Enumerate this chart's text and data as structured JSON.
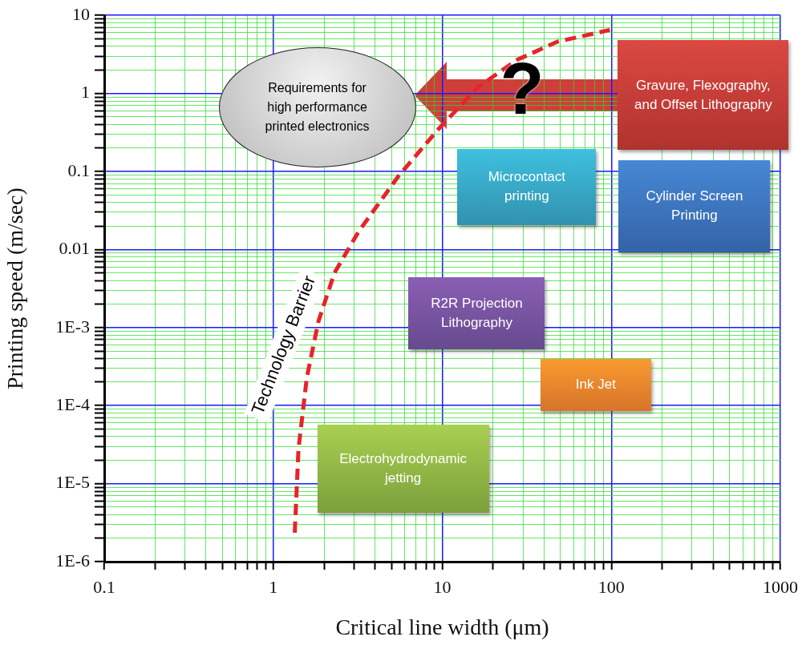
{
  "chart_data": {
    "type": "line",
    "xlabel": "Critical line width (μm)",
    "ylabel": "Printing speed (m/sec)",
    "x": [
      1.34,
      1.41,
      1.58,
      1.85,
      2.3,
      3.2,
      5.5,
      9.5,
      16.2,
      27.8,
      48,
      98
    ],
    "series": [
      {
        "name": "Technology Barrier",
        "color": "#e8232a",
        "values": [
          2.35e-06,
          2.8e-05,
          0.00023,
          0.0012,
          0.005,
          0.017,
          0.087,
          0.35,
          1.2,
          2.7,
          4.6,
          6.5
        ]
      }
    ],
    "log": "xy",
    "xlim": [
      0.1,
      1000
    ],
    "ylim": [
      1e-06,
      10
    ],
    "xticks": [
      0.1,
      {
        "value": 0.2,
        "label": null
      },
      {
        "value": 0.3,
        "label": null
      },
      {
        "value": 0.4,
        "label": null
      },
      {
        "value": 0.5,
        "label": null
      },
      {
        "value": 0.6,
        "label": null
      },
      {
        "value": 0.7,
        "label": null
      },
      {
        "value": 0.8,
        "label": null
      },
      {
        "value": 0.9,
        "label": null
      },
      1,
      {
        "value": 2,
        "label": null
      },
      {
        "value": 3,
        "label": null
      },
      {
        "value": 4,
        "label": null
      },
      {
        "value": 5,
        "label": null
      },
      {
        "value": 6,
        "label": null
      },
      {
        "value": 7,
        "label": null
      },
      {
        "value": 8,
        "label": null
      },
      {
        "value": 9,
        "label": null
      },
      10,
      {
        "value": 20,
        "label": null
      },
      {
        "value": 30,
        "label": null
      },
      {
        "value": 40,
        "label": null
      },
      {
        "value": 50,
        "label": null
      },
      {
        "value": 60,
        "label": null
      },
      {
        "value": 70,
        "label": null
      },
      {
        "value": 80,
        "label": null
      },
      {
        "value": 90,
        "label": null
      },
      100,
      {
        "value": 200,
        "label": null
      },
      {
        "value": 300,
        "label": null
      },
      {
        "value": 400,
        "label": null
      },
      {
        "value": 500,
        "label": null
      },
      {
        "value": 600,
        "label": null
      },
      {
        "value": 700,
        "label": null
      },
      {
        "value": 800,
        "label": null
      },
      {
        "value": 900,
        "label": null
      },
      1000
    ],
    "yticks": [
      {
        "value": 1e-06,
        "label": "1E-6"
      },
      {
        "value": 2e-06,
        "label": null
      },
      {
        "value": 3e-06,
        "label": null
      },
      {
        "value": 4e-06,
        "label": null
      },
      {
        "value": 5e-06,
        "label": null
      },
      {
        "value": 6e-06,
        "label": null
      },
      {
        "value": 7e-06,
        "label": null
      },
      {
        "value": 8e-06,
        "label": null
      },
      {
        "value": 9e-06,
        "label": null
      },
      {
        "value": 1e-05,
        "label": "1E-5"
      },
      {
        "value": 2e-05,
        "label": null
      },
      {
        "value": 3e-05,
        "label": null
      },
      {
        "value": 4e-05,
        "label": null
      },
      {
        "value": 5e-05,
        "label": null
      },
      {
        "value": 6e-05,
        "label": null
      },
      {
        "value": 7e-05,
        "label": null
      },
      {
        "value": 8e-05,
        "label": null
      },
      {
        "value": 9e-05,
        "label": null
      },
      {
        "value": 0.0001,
        "label": "1E-4"
      },
      {
        "value": 0.0002,
        "label": null
      },
      {
        "value": 0.0003,
        "label": null
      },
      {
        "value": 0.0004,
        "label": null
      },
      {
        "value": 0.0005,
        "label": null
      },
      {
        "value": 0.0006,
        "label": null
      },
      {
        "value": 0.0007,
        "label": null
      },
      {
        "value": 0.0008,
        "label": null
      },
      {
        "value": 0.0009,
        "label": null
      },
      {
        "value": 0.001,
        "label": "1E-3"
      },
      {
        "value": 0.002,
        "label": null
      },
      {
        "value": 0.003,
        "label": null
      },
      {
        "value": 0.004,
        "label": null
      },
      {
        "value": 0.005,
        "label": null
      },
      {
        "value": 0.006,
        "label": null
      },
      {
        "value": 0.007,
        "label": null
      },
      {
        "value": 0.008,
        "label": null
      },
      {
        "value": 0.009,
        "label": null
      },
      0.01,
      {
        "value": 0.02,
        "label": null
      },
      {
        "value": 0.03,
        "label": null
      },
      {
        "value": 0.04,
        "label": null
      },
      {
        "value": 0.05,
        "label": null
      },
      {
        "value": 0.06,
        "label": null
      },
      {
        "value": 0.07,
        "label": null
      },
      {
        "value": 0.08,
        "label": null
      },
      {
        "value": 0.09,
        "label": null
      },
      0.1,
      {
        "value": 0.2,
        "label": null
      },
      {
        "value": 0.3,
        "label": null
      },
      {
        "value": 0.4,
        "label": null
      },
      {
        "value": 0.5,
        "label": null
      },
      {
        "value": 0.6,
        "label": null
      },
      {
        "value": 0.7,
        "label": null
      },
      {
        "value": 0.8,
        "label": null
      },
      {
        "value": 0.9,
        "label": null
      },
      1,
      {
        "value": 2,
        "label": null
      },
      {
        "value": 3,
        "label": null
      },
      {
        "value": 4,
        "label": null
      },
      {
        "value": 5,
        "label": null
      },
      {
        "value": 6,
        "label": null
      },
      {
        "value": 7,
        "label": null
      },
      {
        "value": 8,
        "label": null
      },
      {
        "value": 9,
        "label": null
      },
      10
    ],
    "grid": true,
    "legend": false,
    "marker": "none",
    "line_style": "dashed",
    "annotations": [
      "Requirements for high performance printed electronics",
      "?",
      "Gravure, Flexography, and Offset Lithography",
      "Microcontact printing",
      "Cylinder Screen Printing",
      "R2R Projection Lithography",
      "Ink Jet",
      "Electrohydrodynamic jetting"
    ]
  }
}
